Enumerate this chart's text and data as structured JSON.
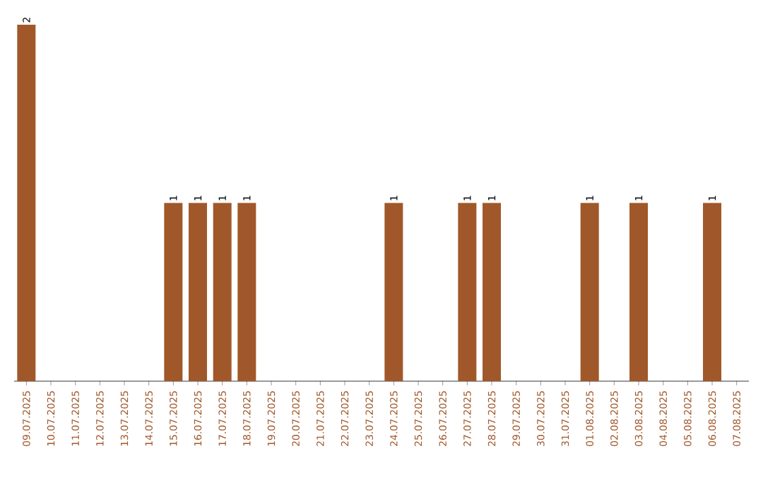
{
  "chart_data": {
    "type": "bar",
    "categories": [
      "09.07.2025",
      "10.07.2025",
      "11.07.2025",
      "12.07.2025",
      "13.07.2025",
      "14.07.2025",
      "15.07.2025",
      "16.07.2025",
      "17.07.2025",
      "18.07.2025",
      "19.07.2025",
      "20.07.2025",
      "21.07.2025",
      "22.07.2025",
      "23.07.2025",
      "24.07.2025",
      "25.07.2025",
      "26.07.2025",
      "27.07.2025",
      "28.07.2025",
      "29.07.2025",
      "30.07.2025",
      "31.07.2025",
      "01.08.2025",
      "02.08.2025",
      "03.08.2025",
      "04.08.2025",
      "05.08.2025",
      "06.08.2025",
      "07.08.2025"
    ],
    "values": [
      2,
      0,
      0,
      0,
      0,
      0,
      1,
      1,
      1,
      1,
      0,
      0,
      0,
      0,
      0,
      1,
      0,
      0,
      1,
      1,
      0,
      0,
      0,
      1,
      0,
      1,
      0,
      0,
      1,
      0
    ],
    "value_labels": [
      "2",
      null,
      null,
      null,
      null,
      null,
      "1",
      "1",
      "1",
      "1",
      null,
      null,
      null,
      null,
      null,
      "1",
      null,
      null,
      "1",
      "1",
      null,
      null,
      null,
      "1",
      null,
      "1",
      null,
      null,
      "1",
      null
    ],
    "color": "#a0582a"
  }
}
